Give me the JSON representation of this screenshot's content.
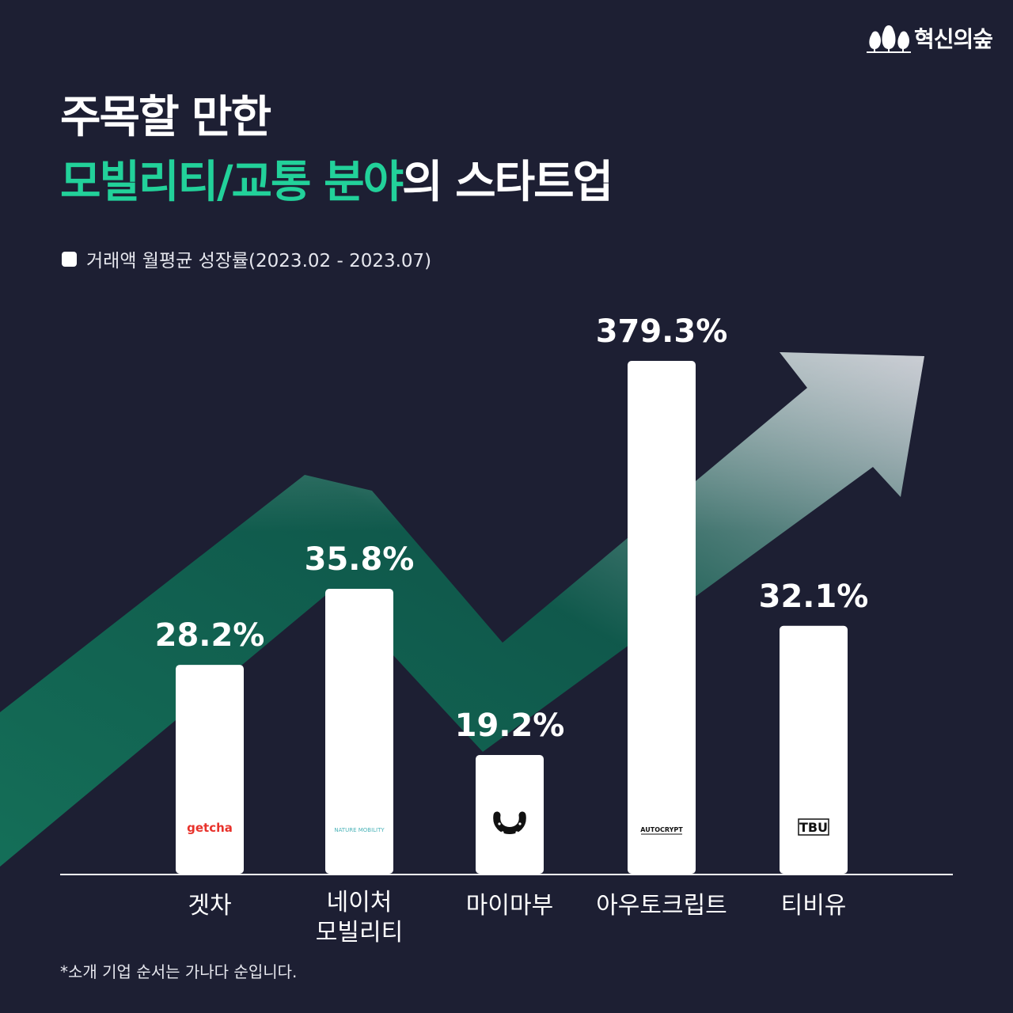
{
  "brand": {
    "name": "혁신의숲"
  },
  "title": {
    "line1": "주목할 만한",
    "line2_highlight": "모빌리티/교통 분야",
    "line2_rest": "의 스타트업"
  },
  "legend": {
    "label": "거래액 월평균 성장률(2023.02 - 2023.07)"
  },
  "footnote": "*소개 기업 순서는 가나다 순입니다.",
  "colors": {
    "background": "#1d1f33",
    "accent": "#22d19a",
    "bar": "#ffffff",
    "arrow": "#14735a"
  },
  "chart_data": {
    "type": "bar",
    "categories": [
      "겟차",
      "네이처\n모빌리티",
      "마이마부",
      "아우토크립트",
      "티비유"
    ],
    "values": [
      28.2,
      35.8,
      19.2,
      379.3,
      32.1
    ],
    "value_labels": [
      "28.2%",
      "35.8%",
      "19.2%",
      "379.3%",
      "32.1%"
    ],
    "logos": [
      {
        "text": "getcha",
        "color": "#e8322b"
      },
      {
        "text": "NATURE MOBILITY",
        "color": "#4bb3b8"
      },
      {
        "text": "",
        "icon": "horseshoe-icon",
        "color": "#111111"
      },
      {
        "text": "AUTOCRYPT",
        "color": "#111111"
      },
      {
        "text": "TBU",
        "color": "#111111"
      }
    ],
    "series": [
      {
        "values": [
          28.2,
          35.8,
          19.2,
          379.3,
          32.1
        ]
      }
    ],
    "scale": "non-linear (illustrative)",
    "grid": false
  }
}
